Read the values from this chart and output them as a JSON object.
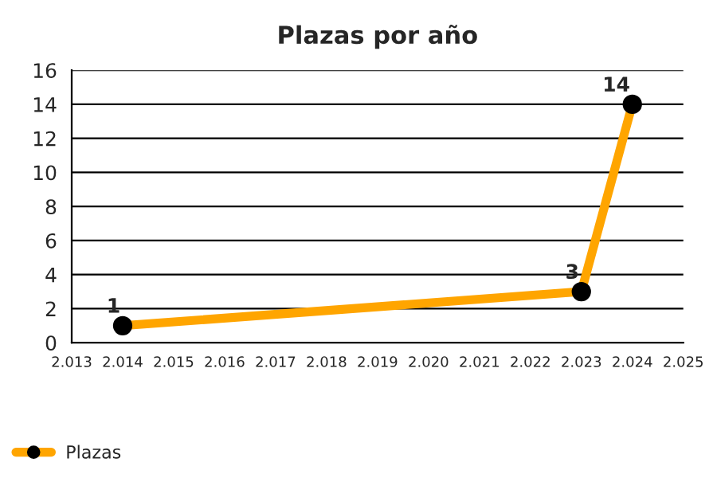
{
  "chart_data": {
    "type": "line",
    "title": "Plazas por año",
    "x": [
      2014,
      2023,
      2024
    ],
    "series": [
      {
        "name": "Plazas",
        "color": "#ffa500",
        "values": [
          1,
          3,
          14
        ]
      }
    ],
    "xlim": [
      2013,
      2025
    ],
    "xticks": [
      {
        "value": 2013,
        "label": "2.013"
      },
      {
        "value": 2014,
        "label": "2.014"
      },
      {
        "value": 2015,
        "label": "2.015"
      },
      {
        "value": 2016,
        "label": "2.016"
      },
      {
        "value": 2017,
        "label": "2.017"
      },
      {
        "value": 2018,
        "label": "2.018"
      },
      {
        "value": 2019,
        "label": "2.019"
      },
      {
        "value": 2020,
        "label": "2.020"
      },
      {
        "value": 2021,
        "label": "2.021"
      },
      {
        "value": 2022,
        "label": "2.022"
      },
      {
        "value": 2023,
        "label": "2.023"
      },
      {
        "value": 2024,
        "label": "2.024"
      },
      {
        "value": 2025,
        "label": "2.025"
      }
    ],
    "ylim": [
      0,
      16
    ],
    "yticks": [
      0,
      2,
      4,
      6,
      8,
      10,
      12,
      14,
      16
    ],
    "grid": "y",
    "legend": "bottom left",
    "marker": "circle",
    "line_style": "solid",
    "data_labels": true
  }
}
